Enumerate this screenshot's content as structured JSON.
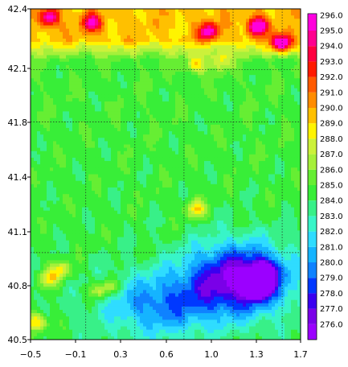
{
  "chart_data": {
    "type": "heatmap",
    "title": "",
    "xlabel": "",
    "ylabel": "",
    "xlim": [
      -0.5,
      1.7
    ],
    "ylim": [
      40.5,
      42.4
    ],
    "x_ticks": [
      -0.5,
      -0.1,
      0.3,
      0.6,
      1.0,
      1.3,
      1.7
    ],
    "x_tick_labels": [
      "−0.5",
      "−0.1",
      "0.3",
      "0.6",
      "1.0",
      "1.3",
      "1.7"
    ],
    "y_ticks": [
      40.5,
      40.8,
      41.1,
      41.4,
      41.8,
      42.1,
      42.4
    ],
    "y_tick_labels": [
      "40.5",
      "40.8",
      "41.1",
      "41.4",
      "41.8",
      "42.1",
      "42.4"
    ],
    "gridlines": {
      "style": "dotted",
      "x": [
        -0.05,
        0.35,
        0.75,
        1.15,
        1.55
      ],
      "y": [
        41.0,
        41.75,
        42.05
      ]
    },
    "colorbar": {
      "levels": [
        276.0,
        277.0,
        278.0,
        279.0,
        280.0,
        281.0,
        282.0,
        283.0,
        284.0,
        285.0,
        286.0,
        287.0,
        288.0,
        289.0,
        290.0,
        291.0,
        292.0,
        293.0,
        294.0,
        295.0,
        296.0
      ],
      "labels": [
        "276.0",
        "277.0",
        "278.0",
        "279.0",
        "280.0",
        "281.0",
        "282.0",
        "283.0",
        "284.0",
        "285.0",
        "286.0",
        "287.0",
        "288.0",
        "289.0",
        "290.0",
        "291.0",
        "292.0",
        "293.0",
        "294.0",
        "295.0",
        "296.0"
      ],
      "colors": [
        "#9b00ff",
        "#7a00e8",
        "#3a00f0",
        "#0038ff",
        "#0f82ff",
        "#15b4ff",
        "#2fdcff",
        "#38f5c8",
        "#38f088",
        "#38ee38",
        "#66ee33",
        "#a6f03a",
        "#ccf13a",
        "#fff400",
        "#ffc000",
        "#ff8c00",
        "#ff5a00",
        "#ff1a00",
        "#ff0040",
        "#ff0090",
        "#ff00dc"
      ],
      "top_color": "#ff00ff"
    },
    "field_features": [
      {
        "kind": "warm_band",
        "x_range": [
          -0.5,
          1.7
        ],
        "y_range": [
          42.1,
          42.4
        ],
        "value": 290.5
      },
      {
        "kind": "hot_spot",
        "x": 1.55,
        "y": 42.2,
        "value": 295.0
      },
      {
        "kind": "hot_spot",
        "x": 1.35,
        "y": 42.3,
        "value": 294.0
      },
      {
        "kind": "hot_spot",
        "x": 0.95,
        "y": 42.27,
        "value": 292.0
      },
      {
        "kind": "hot_spot",
        "x": -0.35,
        "y": 42.35,
        "value": 292.0
      },
      {
        "kind": "hot_spot",
        "x": 0.0,
        "y": 42.32,
        "value": 291.5
      },
      {
        "kind": "warm_spot",
        "x": 0.85,
        "y": 42.08,
        "value": 290.0
      },
      {
        "kind": "warm_spot",
        "x": 1.05,
        "y": 42.1,
        "value": 289.5
      },
      {
        "kind": "warm_corner",
        "x": -0.45,
        "y": 40.6,
        "value": 291.0
      },
      {
        "kind": "warm_ridge",
        "x": -0.35,
        "y": 40.85,
        "value": 289.5
      },
      {
        "kind": "warm_ridge",
        "x": -0.25,
        "y": 40.9,
        "value": 289.5
      },
      {
        "kind": "warm_ridge",
        "x": 0.05,
        "y": 40.78,
        "value": 288.5
      },
      {
        "kind": "warm_ridge",
        "x": 0.15,
        "y": 40.8,
        "value": 288.5
      },
      {
        "kind": "warm_ridge",
        "x": 0.85,
        "y": 41.25,
        "value": 290.0
      },
      {
        "kind": "cool_basin",
        "x": 1.2,
        "y": 40.85,
        "value": 278.0
      },
      {
        "kind": "cold_core",
        "x": 1.4,
        "y": 40.88,
        "value": 276.5
      },
      {
        "kind": "cold_core",
        "x": 1.35,
        "y": 40.8,
        "value": 276.5
      },
      {
        "kind": "cool_extent",
        "x": 0.55,
        "y": 40.7,
        "value": 281.0
      }
    ]
  }
}
